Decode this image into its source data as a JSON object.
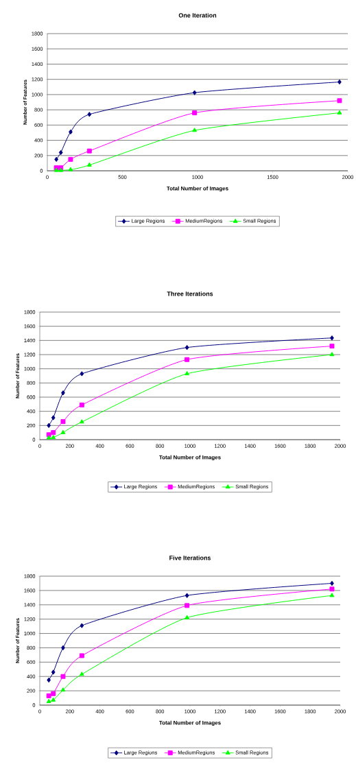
{
  "chart_data": [
    {
      "type": "line",
      "title": "One Iteration",
      "xlabel": "Total Number of Images",
      "ylabel": "Number of Features",
      "xlim": [
        0,
        2000
      ],
      "xticks": [
        0,
        500,
        1000,
        1500,
        2000
      ],
      "ylim": [
        0,
        1800
      ],
      "yticks": [
        0,
        200,
        400,
        600,
        800,
        1000,
        1200,
        1400,
        1600,
        1800
      ],
      "grid": "y",
      "legend": "bottom",
      "x": [
        60,
        90,
        155,
        280,
        980,
        1945
      ],
      "series": [
        {
          "name": "Large Regions",
          "color": "#000080",
          "marker": "diamond",
          "values": [
            150,
            240,
            510,
            740,
            1025,
            1165
          ]
        },
        {
          "name": "MediumRegions",
          "color": "#ff00ff",
          "marker": "square",
          "values": [
            40,
            40,
            150,
            260,
            760,
            920
          ]
        },
        {
          "name": "Small Regions",
          "color": "#00ff00",
          "marker": "triangle",
          "values": [
            5,
            5,
            15,
            75,
            530,
            760
          ]
        }
      ]
    },
    {
      "type": "line",
      "title": "Three Iterations",
      "xlabel": "Total Number of Images",
      "ylabel": "Number of Features",
      "xlim": [
        0,
        2000
      ],
      "xticks": [
        0,
        200,
        400,
        600,
        800,
        1000,
        1200,
        1400,
        1600,
        1800,
        2000
      ],
      "ylim": [
        0,
        1800
      ],
      "yticks": [
        0,
        200,
        400,
        600,
        800,
        1000,
        1200,
        1400,
        1600,
        1800
      ],
      "grid": "y",
      "legend": "bottom",
      "x": [
        60,
        90,
        155,
        280,
        980,
        1945
      ],
      "series": [
        {
          "name": "Large Regions",
          "color": "#000080",
          "marker": "diamond",
          "values": [
            200,
            310,
            660,
            930,
            1300,
            1435
          ]
        },
        {
          "name": "MediumRegions",
          "color": "#ff00ff",
          "marker": "square",
          "values": [
            70,
            100,
            255,
            490,
            1130,
            1320
          ]
        },
        {
          "name": "Small Regions",
          "color": "#00ff00",
          "marker": "triangle",
          "values": [
            25,
            30,
            100,
            250,
            930,
            1200
          ]
        }
      ]
    },
    {
      "type": "line",
      "title": "Five Iterations",
      "xlabel": "Total Number of Images",
      "ylabel": "Number of Features",
      "xlim": [
        0,
        2000
      ],
      "xticks": [
        0,
        200,
        400,
        600,
        800,
        1000,
        1200,
        1400,
        1600,
        1800,
        2000
      ],
      "ylim": [
        0,
        1800
      ],
      "yticks": [
        0,
        200,
        400,
        600,
        800,
        1000,
        1200,
        1400,
        1600,
        1800
      ],
      "grid": "y",
      "legend": "bottom",
      "x": [
        60,
        90,
        155,
        280,
        980,
        1945
      ],
      "series": [
        {
          "name": "Large Regions",
          "color": "#000080",
          "marker": "diamond",
          "values": [
            350,
            460,
            800,
            1110,
            1530,
            1700
          ]
        },
        {
          "name": "MediumRegions",
          "color": "#ff00ff",
          "marker": "square",
          "values": [
            130,
            160,
            400,
            690,
            1390,
            1620
          ]
        },
        {
          "name": "Small Regions",
          "color": "#00ff00",
          "marker": "triangle",
          "values": [
            50,
            70,
            210,
            430,
            1220,
            1530
          ]
        }
      ]
    }
  ]
}
